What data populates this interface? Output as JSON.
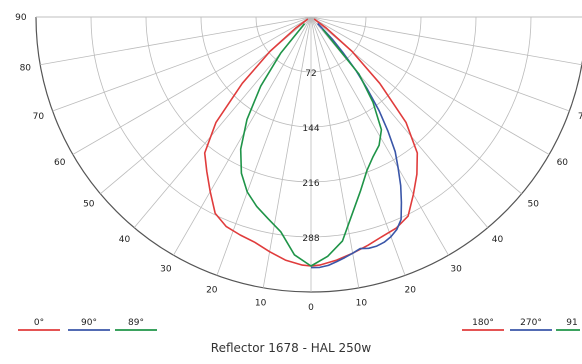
{
  "chart_data": {
    "type": "polar",
    "title": "Reflector 1678 - HAL 250w",
    "radial_ticks": [
      "72",
      "144",
      "216",
      "288"
    ],
    "angle_ticks": [
      90,
      80,
      70,
      60,
      50,
      40,
      30,
      20,
      10,
      0
    ],
    "r_max": 360,
    "legend_left": [
      "0°",
      "90°",
      "89°"
    ],
    "legend_right": [
      "180°",
      "270°",
      "91"
    ],
    "colors": {
      "red": "#e03c3c",
      "blue": "#3a56a8",
      "green": "#1f9448",
      "grid": "#bbbbbb",
      "axis": "#555555"
    },
    "series": [
      {
        "name": "0° / 180°",
        "color": "#e03c3c",
        "theta": [
          -58,
          -54,
          -50,
          -46,
          -42,
          -38,
          -34,
          -30,
          -26,
          -22,
          -18,
          -14,
          -10,
          -6,
          -2,
          0,
          2,
          6,
          10,
          14,
          18,
          22,
          26,
          30,
          34,
          38,
          42,
          46,
          50,
          54,
          58
        ],
        "r": [
          5,
          25,
          70,
          125,
          186,
          226,
          244,
          264,
          286,
          296,
          300,
          304,
          312,
          320,
          325,
          326,
          325,
          320,
          314,
          308,
          302,
          298,
          290,
          268,
          248,
          226,
          186,
          125,
          70,
          25,
          5
        ]
      },
      {
        "name": "90°",
        "color": "#3a56a8",
        "theta": [
          0,
          2,
          4,
          6,
          8,
          10,
          12,
          14,
          16,
          18,
          20,
          22,
          24,
          26,
          28,
          30,
          32,
          34,
          36,
          38,
          40,
          42,
          44,
          46
        ],
        "r": [
          328,
          328,
          326,
          322,
          318,
          314,
          310,
          312,
          312,
          310,
          306,
          300,
          290,
          270,
          250,
          228,
          208,
          180,
          152,
          120,
          92,
          62,
          40,
          12
        ]
      },
      {
        "name": "89°",
        "color": "#1f9448",
        "theta": [
          -44,
          -40,
          -36,
          -32,
          -28,
          -24,
          -20,
          -16,
          -12,
          -8,
          -4,
          0,
          4,
          8,
          12,
          16,
          20,
          24,
          28,
          32,
          36,
          40,
          44
        ],
        "r": [
          12,
          62,
          112,
          158,
          196,
          224,
          244,
          258,
          270,
          284,
          312,
          326,
          314,
          296,
          262,
          236,
          214,
          200,
          190,
          174,
          138,
          98,
          22
        ]
      }
    ]
  }
}
